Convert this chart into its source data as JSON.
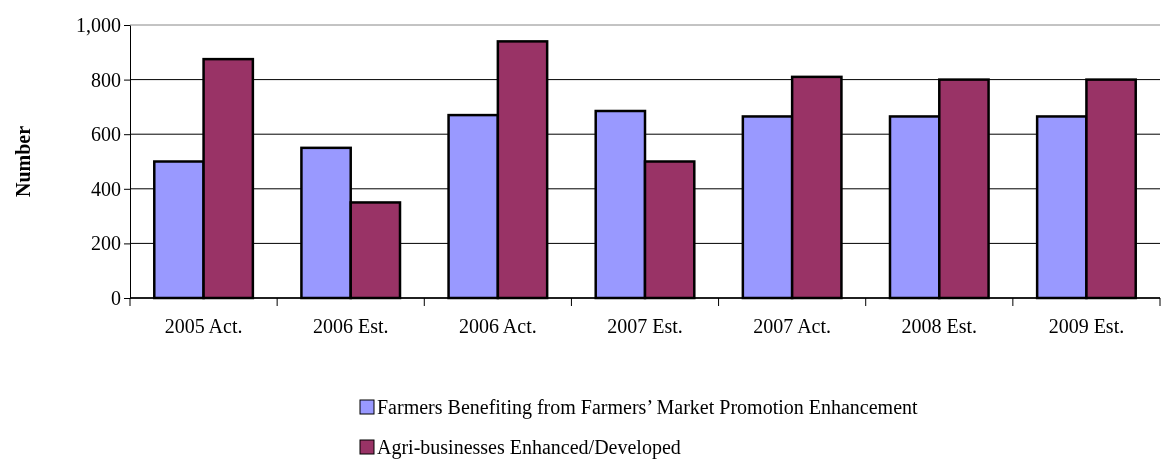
{
  "chart_data": {
    "type": "bar",
    "ylabel": "Number",
    "categories": [
      "2005 Act.",
      "2006 Est.",
      "2006 Act.",
      "2007 Est.",
      "2007 Act.",
      "2008 Est.",
      "2009 Est."
    ],
    "series": [
      {
        "name": "Farmers Benefiting from Farmers’ Market Promotion Enhancement",
        "color": "#9999ff",
        "values": [
          500,
          550,
          670,
          685,
          665,
          665,
          665
        ]
      },
      {
        "name": "Agri-businesses Enhanced/Developed",
        "color": "#993366",
        "values": [
          875,
          350,
          940,
          500,
          810,
          800,
          800
        ]
      }
    ],
    "ylim": [
      0,
      1000
    ],
    "yticks": [
      0,
      200,
      400,
      600,
      800,
      {
        "value": 1000,
        "label": "1,000"
      }
    ],
    "grid": "y",
    "legend": "bottom"
  }
}
